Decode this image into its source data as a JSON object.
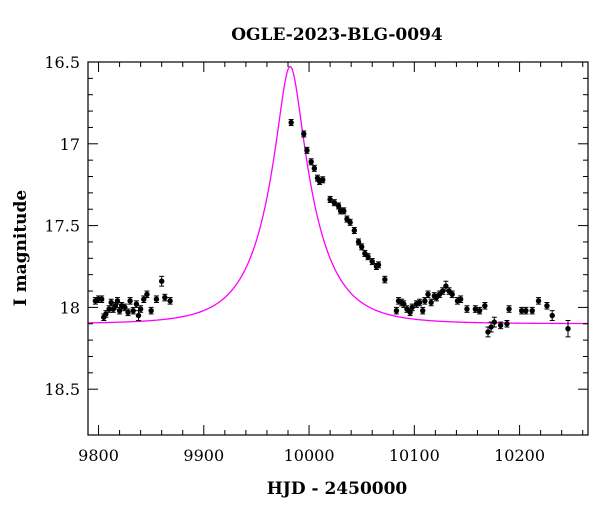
{
  "chart_data": {
    "type": "scatter",
    "title": "OGLE-2023-BLG-0094",
    "xlabel": "HJD - 2450000",
    "ylabel": "I magnitude",
    "xlim": [
      9790,
      10265
    ],
    "ylim": [
      18.78,
      16.5
    ],
    "y_inverted": true,
    "x_ticks": [
      9800,
      9900,
      10000,
      10100,
      10200
    ],
    "y_ticks": [
      16.5,
      17,
      17.5,
      18,
      18.5
    ],
    "y_tick_labels": [
      "16.5",
      "17",
      "17.5",
      "18",
      "18.5"
    ],
    "colors": {
      "points": "#000000",
      "model": "#ff00ff",
      "frame": "#000000"
    },
    "model": {
      "type": "microlensing_pspl",
      "t0": 9982,
      "u0": 0.24,
      "tE": 45,
      "baseline_mag": 18.1
    },
    "series": [
      {
        "style": "points_with_error_bars",
        "points": [
          [
            9797,
            17.96,
            0.02
          ],
          [
            9800,
            17.95,
            0.02
          ],
          [
            9803,
            17.95,
            0.02
          ],
          [
            9805,
            18.06,
            0.02
          ],
          [
            9807,
            18.04,
            0.02
          ],
          [
            9810,
            18.01,
            0.02
          ],
          [
            9812,
            17.97,
            0.02
          ],
          [
            9814,
            18.01,
            0.02
          ],
          [
            9816,
            17.99,
            0.02
          ],
          [
            9818,
            17.96,
            0.02
          ],
          [
            9820,
            18.02,
            0.02
          ],
          [
            9822,
            17.99,
            0.02
          ],
          [
            9825,
            18.0,
            0.02
          ],
          [
            9828,
            18.03,
            0.02
          ],
          [
            9830,
            17.96,
            0.02
          ],
          [
            9833,
            18.02,
            0.02
          ],
          [
            9836,
            17.98,
            0.02
          ],
          [
            9838,
            18.05,
            0.03
          ],
          [
            9840,
            18.01,
            0.02
          ],
          [
            9843,
            17.95,
            0.02
          ],
          [
            9846,
            17.92,
            0.02
          ],
          [
            9850,
            18.02,
            0.02
          ],
          [
            9855,
            17.95,
            0.02
          ],
          [
            9860,
            17.84,
            0.03
          ],
          [
            9863,
            17.94,
            0.02
          ],
          [
            9868,
            17.96,
            0.02
          ],
          [
            9983,
            16.87,
            0.015
          ],
          [
            9995,
            16.94,
            0.015
          ],
          [
            9998,
            17.04,
            0.015
          ],
          [
            10002,
            17.11,
            0.015
          ],
          [
            10005,
            17.15,
            0.015
          ],
          [
            10008,
            17.21,
            0.015
          ],
          [
            10010,
            17.23,
            0.015
          ],
          [
            10013,
            17.22,
            0.015
          ],
          [
            10020,
            17.34,
            0.015
          ],
          [
            10024,
            17.36,
            0.015
          ],
          [
            10028,
            17.38,
            0.015
          ],
          [
            10030,
            17.41,
            0.015
          ],
          [
            10033,
            17.41,
            0.015
          ],
          [
            10036,
            17.46,
            0.015
          ],
          [
            10039,
            17.48,
            0.015
          ],
          [
            10043,
            17.53,
            0.015
          ],
          [
            10047,
            17.6,
            0.015
          ],
          [
            10050,
            17.63,
            0.015
          ],
          [
            10053,
            17.67,
            0.015
          ],
          [
            10056,
            17.69,
            0.015
          ],
          [
            10060,
            17.72,
            0.015
          ],
          [
            10064,
            17.75,
            0.015
          ],
          [
            10066,
            17.74,
            0.015
          ],
          [
            10072,
            17.83,
            0.02
          ],
          [
            10083,
            18.02,
            0.02
          ],
          [
            10085,
            17.96,
            0.02
          ],
          [
            10088,
            17.97,
            0.02
          ],
          [
            10090,
            17.98,
            0.02
          ],
          [
            10093,
            18.01,
            0.02
          ],
          [
            10096,
            18.03,
            0.02
          ],
          [
            10098,
            18.0,
            0.02
          ],
          [
            10102,
            17.98,
            0.02
          ],
          [
            10105,
            17.97,
            0.02
          ],
          [
            10108,
            18.02,
            0.02
          ],
          [
            10110,
            17.96,
            0.02
          ],
          [
            10113,
            17.92,
            0.02
          ],
          [
            10116,
            17.97,
            0.02
          ],
          [
            10119,
            17.93,
            0.02
          ],
          [
            10121,
            17.94,
            0.02
          ],
          [
            10124,
            17.92,
            0.02
          ],
          [
            10127,
            17.9,
            0.02
          ],
          [
            10130,
            17.87,
            0.03
          ],
          [
            10133,
            17.9,
            0.02
          ],
          [
            10136,
            17.92,
            0.02
          ],
          [
            10141,
            17.96,
            0.02
          ],
          [
            10144,
            17.95,
            0.02
          ],
          [
            10150,
            18.01,
            0.02
          ],
          [
            10158,
            18.01,
            0.02
          ],
          [
            10162,
            18.02,
            0.02
          ],
          [
            10167,
            17.99,
            0.02
          ],
          [
            10170,
            18.15,
            0.03
          ],
          [
            10173,
            18.12,
            0.03
          ],
          [
            10176,
            18.09,
            0.03
          ],
          [
            10182,
            18.11,
            0.02
          ],
          [
            10188,
            18.1,
            0.02
          ],
          [
            10190,
            18.01,
            0.02
          ],
          [
            10202,
            18.02,
            0.02
          ],
          [
            10206,
            18.02,
            0.02
          ],
          [
            10212,
            18.02,
            0.02
          ],
          [
            10218,
            17.96,
            0.02
          ],
          [
            10226,
            17.99,
            0.02
          ],
          [
            10231,
            18.05,
            0.03
          ],
          [
            10246,
            18.13,
            0.05
          ]
        ]
      }
    ]
  }
}
